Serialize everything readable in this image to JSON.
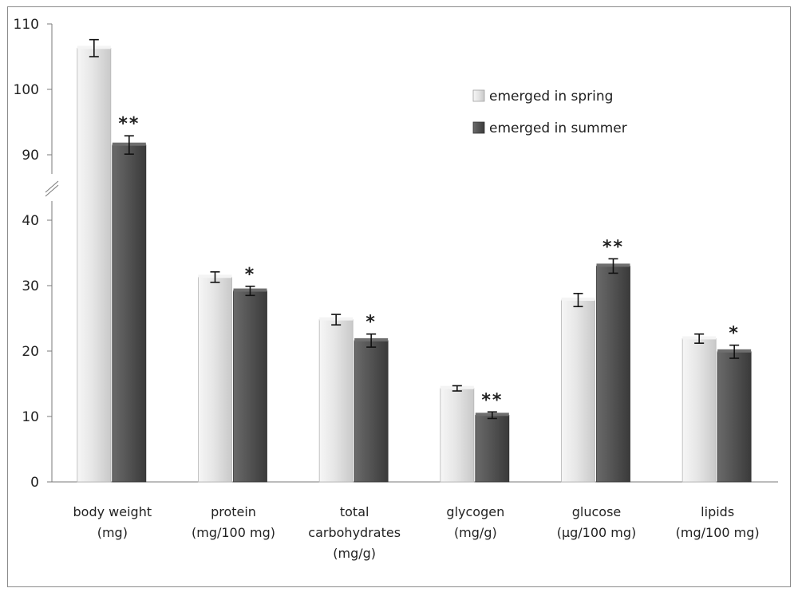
{
  "chart_data": {
    "type": "bar",
    "categories": [
      [
        "body weight",
        "(mg)"
      ],
      [
        "protein",
        "(mg/100 mg)"
      ],
      [
        "total",
        "carbohydrates",
        "(mg/g)"
      ],
      [
        "glycogen",
        "(mg/g)"
      ],
      [
        "glucose",
        "(µg/100 mg)"
      ],
      [
        "lipids",
        "(mg/100 mg)"
      ]
    ],
    "series": [
      {
        "name": "emerged in spring",
        "values": [
          106.3,
          31.3,
          24.8,
          14.3,
          27.8,
          21.9
        ],
        "errors": [
          1.3,
          0.8,
          0.8,
          0.4,
          1.0,
          0.7
        ],
        "color": "#e2e2e2"
      },
      {
        "name": "emerged in summer",
        "values": [
          91.5,
          29.2,
          21.6,
          10.2,
          33.0,
          19.9
        ],
        "errors": [
          1.4,
          0.7,
          1.0,
          0.5,
          1.1,
          1.0
        ],
        "color": "#555555"
      }
    ],
    "significance": [
      "**",
      "*",
      "*",
      "**",
      "**",
      "*"
    ],
    "yticks": [
      0,
      10,
      20,
      30,
      40,
      90,
      100,
      110
    ],
    "y_axis_break": [
      40,
      90
    ],
    "ylim": [
      0,
      110
    ],
    "legend_position": "top-right",
    "grid": false,
    "title": "",
    "xlabel": "",
    "ylabel": ""
  }
}
